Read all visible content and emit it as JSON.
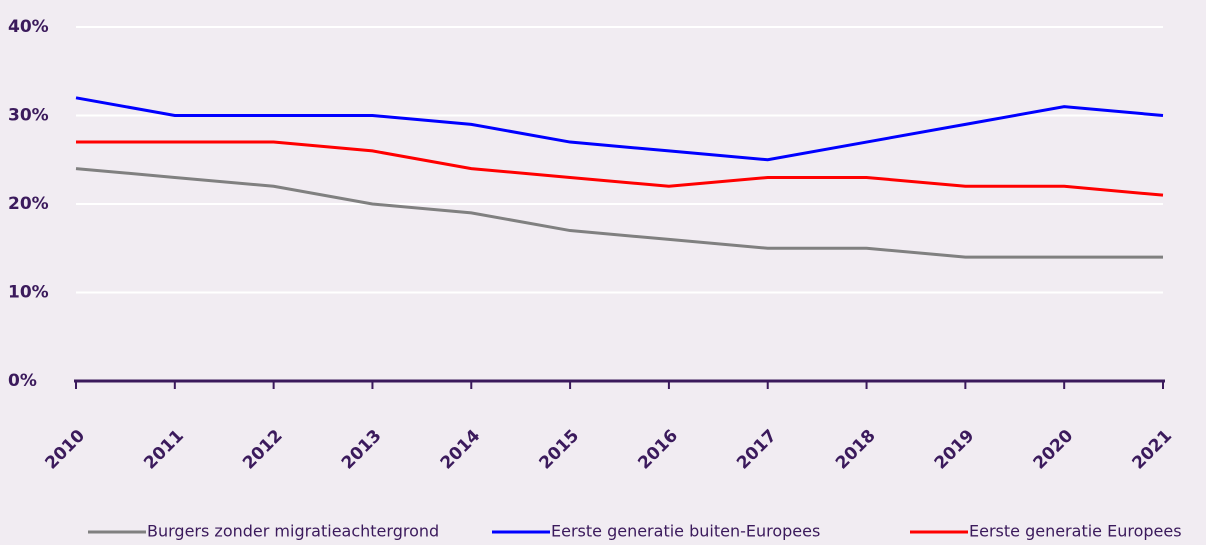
{
  "chart_data": {
    "type": "line",
    "categories": [
      "2010",
      "2011",
      "2012",
      "2013",
      "2014",
      "2015",
      "2016",
      "2017",
      "2018",
      "2019",
      "2020",
      "2021"
    ],
    "series": [
      {
        "name": "Burgers zonder migratieachtergrond",
        "color": "#808080",
        "values": [
          24,
          23,
          22,
          20,
          19,
          17,
          16,
          15,
          15,
          14,
          14,
          14
        ]
      },
      {
        "name": "Eerste generatie buiten-Europees",
        "color": "#0000ff",
        "values": [
          32,
          30,
          30,
          30,
          29,
          27,
          26,
          25,
          27,
          29,
          31,
          30
        ]
      },
      {
        "name": "Eerste generatie Europees",
        "color": "#ff0000",
        "values": [
          27,
          27,
          27,
          26,
          24,
          23,
          22,
          23,
          23,
          22,
          22,
          21
        ]
      }
    ],
    "ylim": [
      0,
      40
    ],
    "yticks": [
      {
        "value": 0,
        "label": "0%"
      },
      {
        "value": 10,
        "label": "10%"
      },
      {
        "value": 20,
        "label": "20%"
      },
      {
        "value": 30,
        "label": "30%"
      },
      {
        "value": 40,
        "label": "40%"
      }
    ],
    "grid": true,
    "legend": "bottom"
  }
}
